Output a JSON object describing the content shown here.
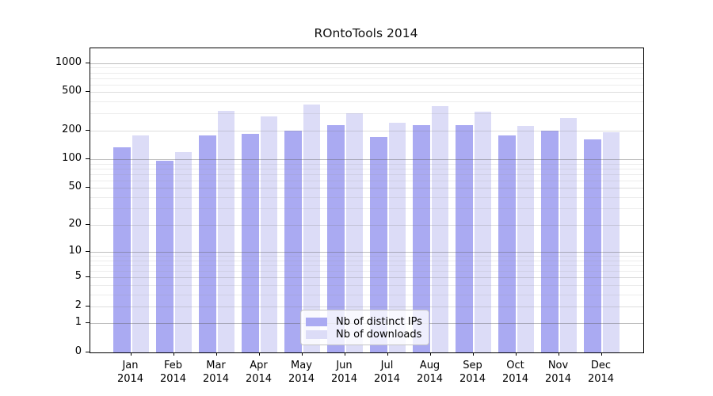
{
  "chart_data": {
    "type": "bar",
    "title": "ROntoTools 2014",
    "categories": [
      "Jan",
      "Feb",
      "Mar",
      "Apr",
      "May",
      "Jun",
      "Jul",
      "Aug",
      "Sep",
      "Oct",
      "Nov",
      "Dec"
    ],
    "year_label": "2014",
    "series": [
      {
        "name": "Nb of distinct IPs",
        "color": "#aaaaf2",
        "values": [
          133,
          97,
          178,
          183,
          199,
          228,
          171,
          228,
          225,
          178,
          200,
          160
        ]
      },
      {
        "name": "Nb of downloads",
        "color": "#dcdcf7",
        "values": [
          176,
          118,
          320,
          277,
          370,
          299,
          238,
          359,
          311,
          224,
          267,
          192
        ]
      }
    ],
    "y_scale": "log1p",
    "y_ticks": [
      0,
      1,
      2,
      5,
      10,
      20,
      50,
      100,
      200,
      500,
      1000
    ],
    "y_minor_ticks": [
      3,
      4,
      6,
      7,
      8,
      9,
      30,
      40,
      60,
      70,
      80,
      90,
      300,
      400,
      600,
      700,
      800,
      900
    ],
    "ylim": [
      0,
      1425
    ],
    "xlabel": "",
    "ylabel": "",
    "grid": true,
    "legend_position": "inside-lower-center"
  }
}
